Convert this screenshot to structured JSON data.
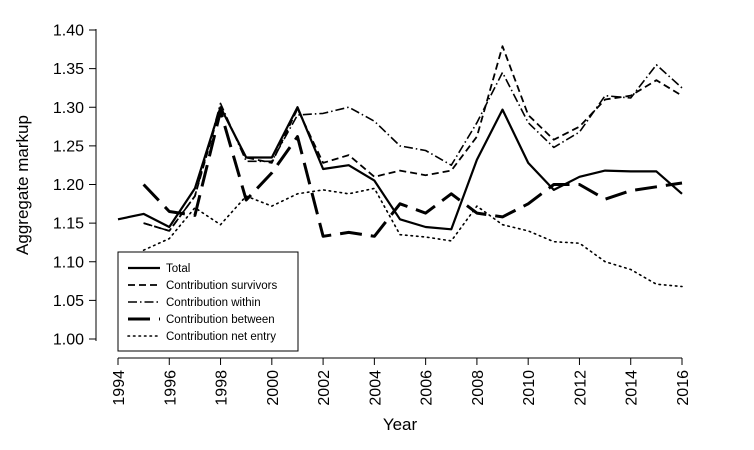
{
  "chart_data": {
    "type": "line",
    "xlabel": "Year",
    "ylabel": "Aggregate markup",
    "xlim": [
      1994,
      2016
    ],
    "ylim": [
      1.0,
      1.4
    ],
    "x_ticks": [
      "1994",
      "1996",
      "1998",
      "2000",
      "2002",
      "2004",
      "2006",
      "2008",
      "2010",
      "2012",
      "2014",
      "2016"
    ],
    "y_ticks": [
      "1.00",
      "1.05",
      "1.10",
      "1.15",
      "1.20",
      "1.25",
      "1.30",
      "1.35",
      "1.40"
    ],
    "legend_position": "bottom-left",
    "grid": false,
    "series": [
      {
        "name": "Total",
        "dash": "solid",
        "x": [
          1994,
          1995,
          1996,
          1997,
          1998,
          1999,
          2000,
          2001,
          2002,
          2003,
          2004,
          2005,
          2006,
          2007,
          2008,
          2009,
          2010,
          2011,
          2012,
          2013,
          2014,
          2015,
          2016
        ],
        "values": [
          1.155,
          1.162,
          1.145,
          1.195,
          1.3,
          1.235,
          1.235,
          1.3,
          1.22,
          1.225,
          1.205,
          1.155,
          1.145,
          1.142,
          1.232,
          1.297,
          1.228,
          1.193,
          1.21,
          1.218,
          1.217,
          1.217,
          1.188
        ]
      },
      {
        "name": "Contribution survivors",
        "dash": "dashed",
        "x": [
          1995,
          1996,
          1997,
          1998,
          1999,
          2000,
          2001,
          2002,
          2003,
          2004,
          2005,
          2006,
          2007,
          2008,
          2009,
          2010,
          2011,
          2012,
          2013,
          2014,
          2015,
          2016
        ],
        "values": [
          1.15,
          1.14,
          1.185,
          1.3,
          1.235,
          1.228,
          1.298,
          1.228,
          1.238,
          1.21,
          1.218,
          1.212,
          1.218,
          1.262,
          1.379,
          1.29,
          1.258,
          1.275,
          1.31,
          1.315,
          1.335,
          1.315
        ]
      },
      {
        "name": "Contribution within",
        "dash": "dashdot",
        "x": [
          1995,
          1996,
          1997,
          1998,
          1999,
          2000,
          2001,
          2002,
          2003,
          2004,
          2005,
          2006,
          2007,
          2008,
          2009,
          2010,
          2011,
          2012,
          2013,
          2014,
          2015,
          2016
        ],
        "values": [
          1.15,
          1.14,
          1.185,
          1.305,
          1.23,
          1.23,
          1.29,
          1.292,
          1.3,
          1.282,
          1.25,
          1.244,
          1.225,
          1.28,
          1.345,
          1.28,
          1.248,
          1.268,
          1.315,
          1.312,
          1.355,
          1.325
        ]
      },
      {
        "name": "Contribution between",
        "dash": "longdash",
        "x": [
          1995,
          1996,
          1997,
          1998,
          1999,
          2000,
          2001,
          2002,
          2003,
          2004,
          2005,
          2006,
          2007,
          2008,
          2009,
          2010,
          2011,
          2012,
          2013,
          2014,
          2015,
          2016
        ],
        "values": [
          1.2,
          1.165,
          1.16,
          1.295,
          1.18,
          1.215,
          1.262,
          1.133,
          1.138,
          1.133,
          1.175,
          1.163,
          1.188,
          1.163,
          1.158,
          1.175,
          1.2,
          1.2,
          1.181,
          1.192,
          1.197,
          1.202
        ]
      },
      {
        "name": "Contribution net entry",
        "dash": "dotted",
        "x": [
          1995,
          1996,
          1997,
          1998,
          1999,
          2000,
          2001,
          2002,
          2003,
          2004,
          2005,
          2006,
          2007,
          2008,
          2009,
          2010,
          2011,
          2012,
          2013,
          2014,
          2015,
          2016
        ],
        "values": [
          1.115,
          1.13,
          1.17,
          1.148,
          1.185,
          1.172,
          1.188,
          1.193,
          1.188,
          1.195,
          1.135,
          1.132,
          1.127,
          1.172,
          1.148,
          1.14,
          1.126,
          1.124,
          1.1,
          1.09,
          1.071,
          1.068
        ]
      }
    ]
  }
}
